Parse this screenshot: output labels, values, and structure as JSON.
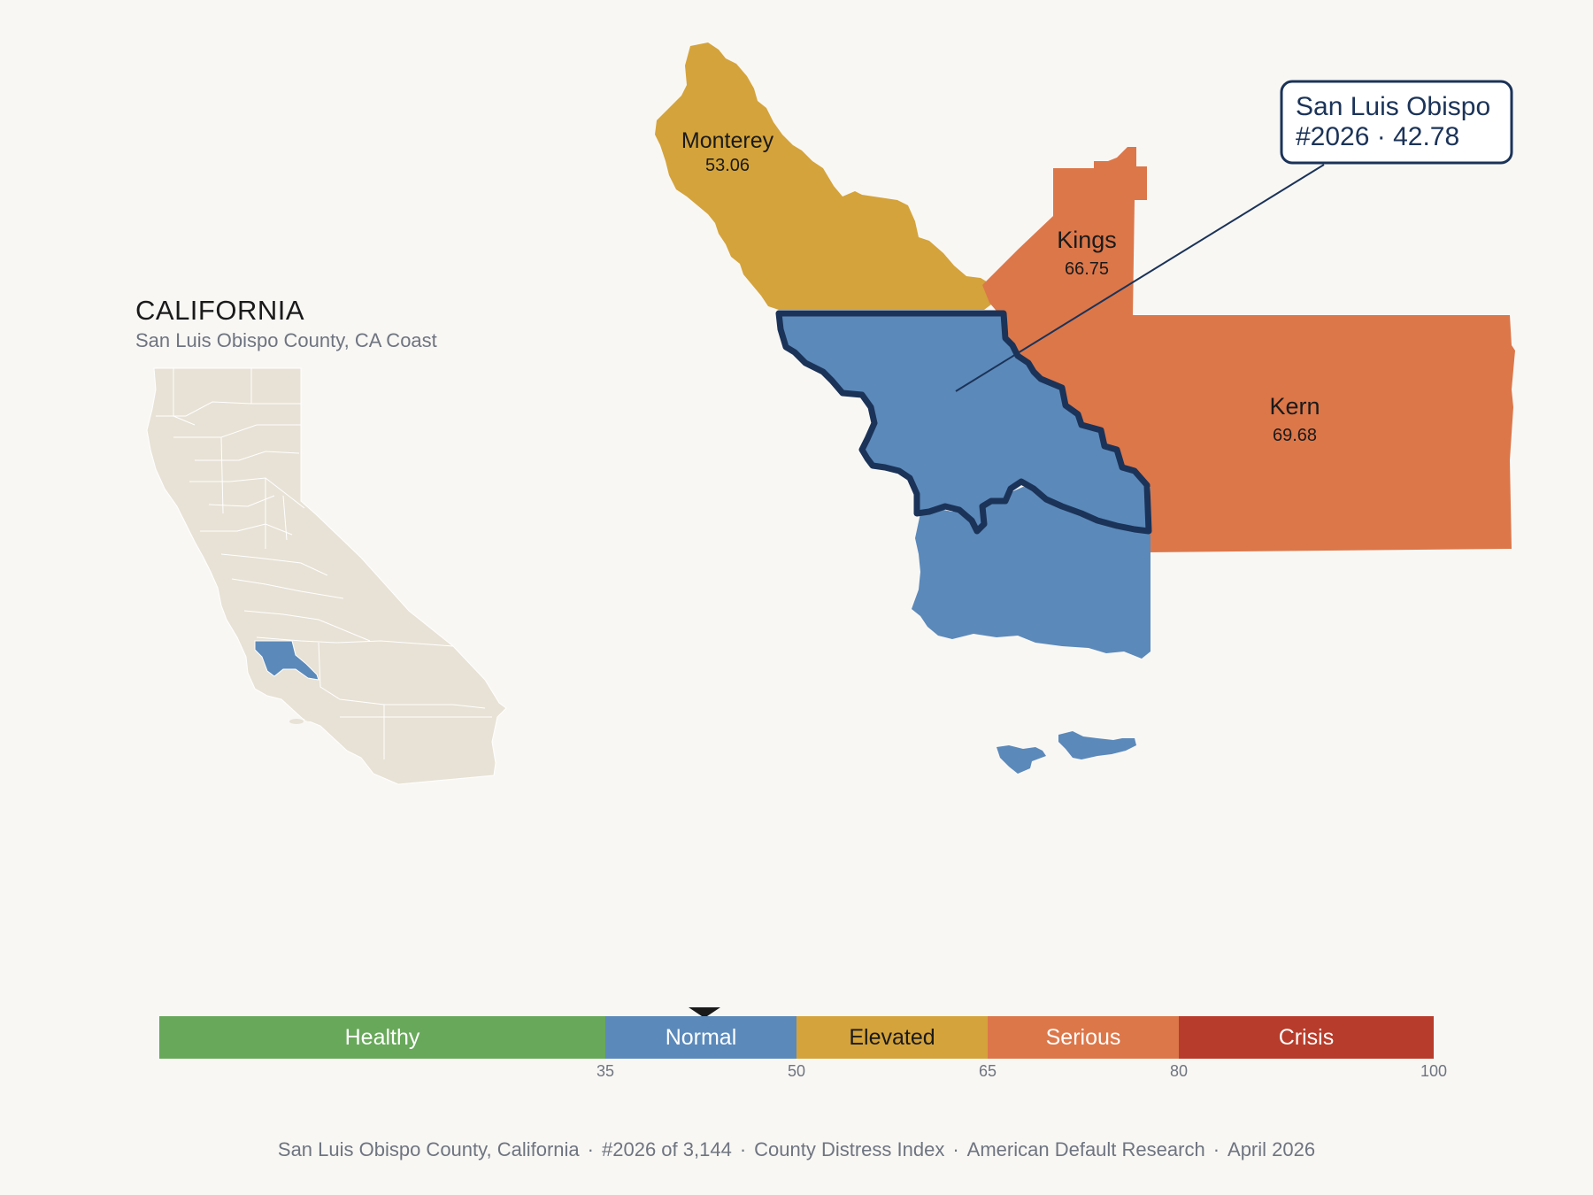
{
  "inset": {
    "title": "CALIFORNIA",
    "subtitle": "San Luis Obispo County, CA Coast"
  },
  "counties": [
    {
      "name": "Monterey",
      "value": "53.06",
      "category": "Elevated",
      "color": "#d4a33b"
    },
    {
      "name": "Kings",
      "value": "66.75",
      "category": "Serious",
      "color": "#dc774a"
    },
    {
      "name": "Kern",
      "value": "69.68",
      "category": "Serious",
      "color": "#dc774a"
    },
    {
      "name": "San Luis Obispo",
      "value": "42.78",
      "category": "Normal",
      "color": "#5b89ba",
      "highlighted": true
    },
    {
      "name": "",
      "value": "",
      "category": "Normal",
      "color": "#5b89ba"
    }
  ],
  "callout": {
    "line1": "San Luis Obispo",
    "line2": "#2026 · 42.78"
  },
  "scale": {
    "min": 0,
    "max": 100,
    "current_value": 42.78,
    "segments": [
      {
        "label": "Healthy",
        "from": 0,
        "to": 35,
        "color": "#68a85a",
        "text_color": "#ffffff"
      },
      {
        "label": "Normal",
        "from": 35,
        "to": 50,
        "color": "#5b89ba",
        "text_color": "#ffffff"
      },
      {
        "label": "Elevated",
        "from": 50,
        "to": 65,
        "color": "#d4a33b",
        "text_color": "#1a1a1a"
      },
      {
        "label": "Serious",
        "from": 65,
        "to": 80,
        "color": "#dc774a",
        "text_color": "#ffffff"
      },
      {
        "label": "Crisis",
        "from": 80,
        "to": 100,
        "color": "#b83c2b",
        "text_color": "#ffffff"
      }
    ],
    "ticks": [
      "35",
      "50",
      "65",
      "80",
      "100"
    ]
  },
  "footer": {
    "county": "San Luis Obispo County, California",
    "rank": "#2026 of 3,144",
    "index": "County Distress Index",
    "org": "American Default Research",
    "date": "April 2026",
    "separator": "·"
  },
  "colors": {
    "background": "#f9f7f4",
    "highlight_outline": "#1b3358",
    "inset_land": "#e8e2d6"
  }
}
